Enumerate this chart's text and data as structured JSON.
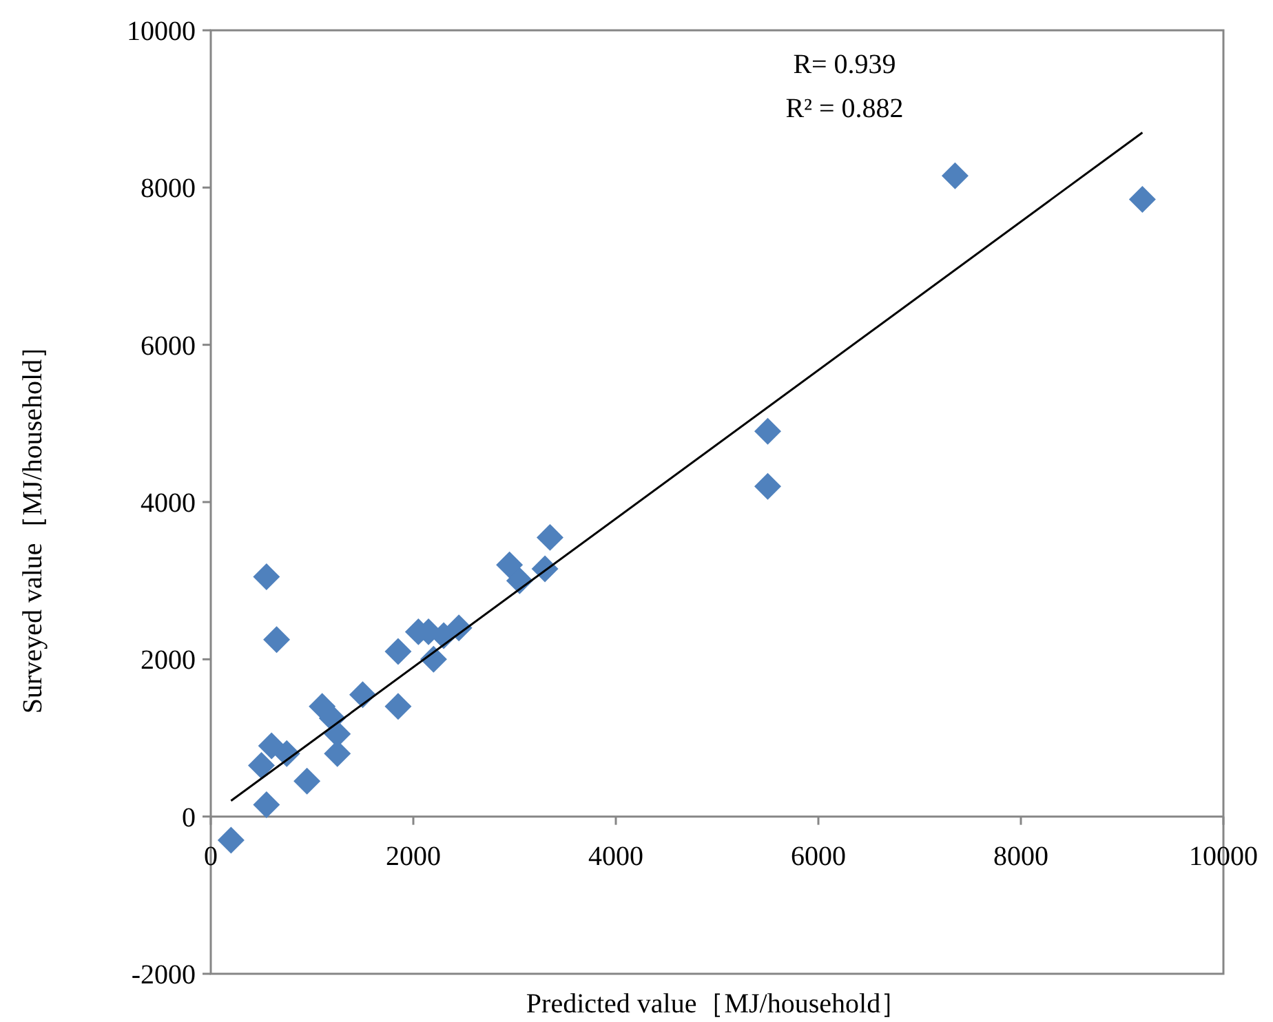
{
  "chart_data": {
    "type": "scatter",
    "xlabel": "Predicted value［MJ/household］",
    "ylabel": "Surveyed value［MJ/household］",
    "annotations": [
      "R= 0.939",
      "R² = 0.882"
    ],
    "xlim": [
      0,
      10000
    ],
    "ylim": [
      -2000,
      10000
    ],
    "xticks": [
      0,
      2000,
      4000,
      6000,
      8000,
      10000
    ],
    "yticks": [
      -2000,
      0,
      2000,
      4000,
      6000,
      8000,
      10000
    ],
    "grid": false,
    "series": [
      {
        "color": "#4f81bd",
        "marker": "diamond",
        "x": [
          200,
          550,
          500,
          600,
          750,
          950,
          550,
          650,
          1100,
          1200,
          1250,
          1250,
          1500,
          1850,
          1850,
          2050,
          2150,
          2200,
          2300,
          2450,
          2950,
          3050,
          3300,
          3350,
          5500,
          5500,
          7350,
          9200
        ],
        "values": [
          -300,
          150,
          650,
          900,
          800,
          450,
          3050,
          2250,
          1400,
          1250,
          1050,
          800,
          1550,
          2100,
          1400,
          2350,
          2350,
          2000,
          2300,
          2400,
          3200,
          3000,
          3150,
          3550,
          4900,
          4200,
          8150,
          7850
        ]
      },
      {
        "type": "line",
        "color": "#000000",
        "marker": "none",
        "x": [
          200,
          9200
        ],
        "values": [
          200,
          8700
        ]
      }
    ]
  }
}
